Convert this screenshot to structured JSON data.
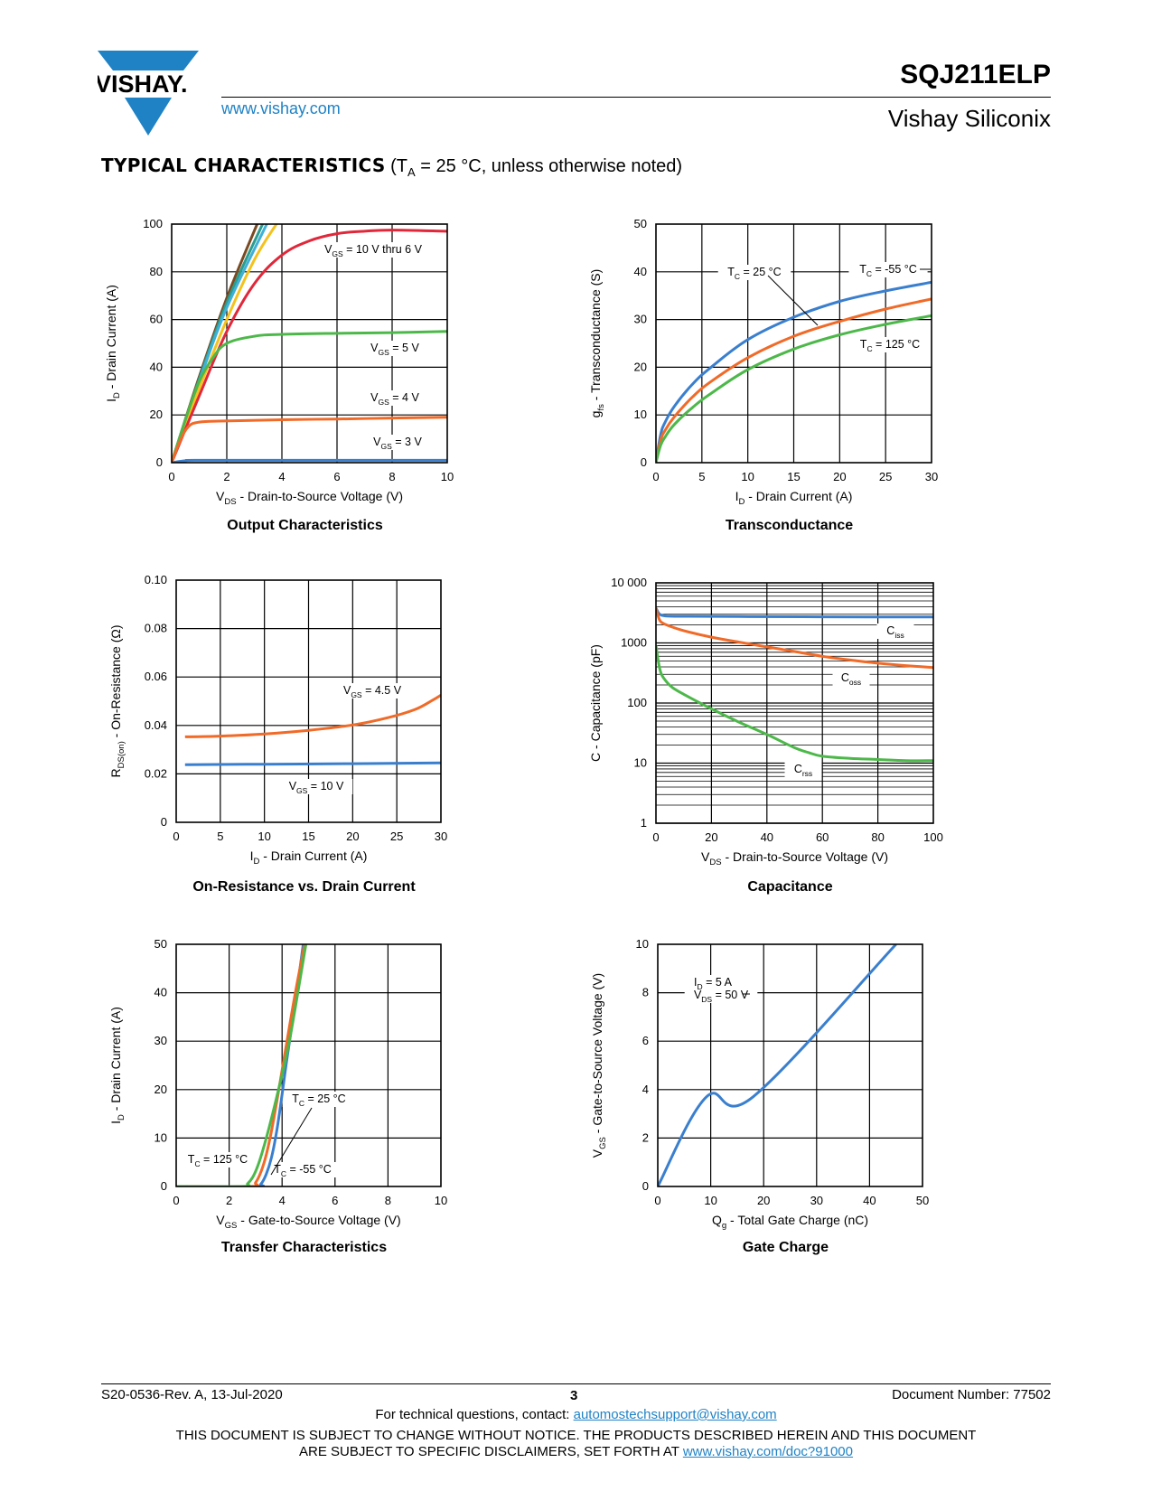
{
  "header": {
    "logo_text": "VISHAY.",
    "website": "www.vishay.com",
    "part_number": "SQJ211ELP",
    "company": "Vishay Siliconix"
  },
  "section": {
    "title_bold": "TYPICAL CHARACTERISTICS",
    "title_rest_prefix": "(T",
    "title_sub": "A",
    "title_rest_suffix": " = 25 °C, unless otherwise noted)"
  },
  "colors": {
    "blue": "#3a7fce",
    "orange": "#f06a28",
    "green": "#4db84a",
    "red": "#e0283a",
    "yellow": "#f5c21c",
    "cyan": "#3fb0d8",
    "brown": "#7a4a22",
    "teal": "#2a9d8f",
    "link": "#1f82c5"
  },
  "chart_data": [
    {
      "id": "output",
      "type": "line",
      "title": "Output Characteristics",
      "xlabel": "V_DS - Drain-to-Source Voltage (V)",
      "ylabel": "I_D - Drain Current (A)",
      "xlim": [
        0,
        10
      ],
      "ylim": [
        0,
        100
      ],
      "xticks": [
        "0",
        "2",
        "4",
        "6",
        "8",
        "10"
      ],
      "yticks": [
        "0",
        "20",
        "40",
        "60",
        "80",
        "100"
      ],
      "grid": true,
      "annotations": [
        "V_GS = 10 V thru 6 V",
        "V_GS = 5 V",
        "V_GS = 4 V",
        "V_GS = 3 V"
      ],
      "series": [
        {
          "color": "brown",
          "x": [
            0,
            1,
            2,
            3.1
          ],
          "y": [
            0,
            36,
            69,
            100
          ]
        },
        {
          "color": "teal",
          "x": [
            0,
            1,
            2,
            3.3
          ],
          "y": [
            0,
            35,
            67,
            100
          ]
        },
        {
          "color": "cyan",
          "x": [
            0,
            1,
            2,
            3.45
          ],
          "y": [
            0,
            34,
            65,
            100
          ]
        },
        {
          "color": "yellow",
          "x": [
            0,
            1,
            2,
            3,
            3.8
          ],
          "y": [
            0,
            31,
            60,
            85,
            100
          ]
        },
        {
          "color": "red",
          "x": [
            0,
            1,
            2,
            3,
            4,
            5,
            6,
            7,
            8,
            10
          ],
          "y": [
            0,
            28,
            55,
            75,
            87,
            93,
            96,
            97,
            97.5,
            97
          ]
        },
        {
          "color": "green",
          "x": [
            0,
            0.5,
            1,
            1.5,
            2,
            3,
            4,
            6,
            8,
            10
          ],
          "y": [
            0,
            18,
            34,
            44,
            50,
            53,
            53.8,
            54.2,
            54.5,
            55
          ]
        },
        {
          "color": "orange",
          "x": [
            0,
            0.3,
            0.6,
            1,
            2,
            4,
            6,
            8,
            10
          ],
          "y": [
            0,
            9,
            15,
            17,
            17.5,
            18,
            18.3,
            18.7,
            19
          ]
        },
        {
          "color": "blue",
          "x": [
            0,
            0.5,
            1,
            5,
            10
          ],
          "y": [
            0,
            0.8,
            1,
            1,
            1
          ]
        }
      ]
    },
    {
      "id": "transconductance",
      "type": "line",
      "title": "Transconductance",
      "xlabel": "I_D - Drain Current (A)",
      "ylabel": "g_fs - Transconductance (S)",
      "xlim": [
        0,
        30
      ],
      "ylim": [
        0,
        50
      ],
      "xticks": [
        "0",
        "5",
        "10",
        "15",
        "20",
        "25",
        "30"
      ],
      "yticks": [
        "0",
        "10",
        "20",
        "30",
        "40",
        "50"
      ],
      "grid": true,
      "annotations": [
        "T_C = 25 °C",
        "T_C = -55 °C",
        "T_C = 125 °C"
      ],
      "series": [
        {
          "name": "T_C = -55 °C",
          "color": "blue",
          "x": [
            0,
            0.5,
            1,
            2,
            4,
            6,
            10,
            15,
            20,
            25,
            30
          ],
          "y": [
            0,
            5.8,
            8.5,
            11.8,
            16.5,
            20,
            25.8,
            30.5,
            33.8,
            36,
            37.8
          ]
        },
        {
          "name": "T_C = 25 °C",
          "color": "orange",
          "x": [
            0,
            0.5,
            1,
            2,
            4,
            6,
            10,
            15,
            20,
            25,
            30
          ],
          "y": [
            0,
            4.6,
            6.8,
            9.6,
            13.8,
            17,
            22,
            26.5,
            29.6,
            32.2,
            34.3
          ]
        },
        {
          "name": "T_C = 125 °C",
          "color": "green",
          "x": [
            0,
            0.5,
            1,
            2,
            4,
            6,
            10,
            15,
            20,
            25,
            30
          ],
          "y": [
            0,
            3.6,
            5.4,
            8,
            11.6,
            14.5,
            19.5,
            23.8,
            26.8,
            29,
            30.8
          ]
        }
      ]
    },
    {
      "id": "onres",
      "type": "line",
      "title": "On-Resistance vs. Drain Current",
      "xlabel": "I_D - Drain Current (A)",
      "ylabel": "R_DS(on) - On-Resistance (Ω)",
      "xlim": [
        0,
        30
      ],
      "ylim": [
        0,
        0.1
      ],
      "xticks": [
        "0",
        "5",
        "10",
        "15",
        "20",
        "25",
        "30"
      ],
      "yticks": [
        "0",
        "0.02",
        "0.04",
        "0.06",
        "0.08",
        "0.10"
      ],
      "grid": true,
      "annotations": [
        "V_GS = 4.5 V",
        "V_GS = 10 V"
      ],
      "series": [
        {
          "name": "V_GS = 4.5 V",
          "color": "orange",
          "x": [
            1,
            5,
            10,
            15,
            20,
            24,
            27,
            29,
            30
          ],
          "y": [
            0.0353,
            0.0356,
            0.0365,
            0.038,
            0.0402,
            0.0432,
            0.0465,
            0.0503,
            0.0525
          ]
        },
        {
          "name": "V_GS = 10 V",
          "color": "blue",
          "x": [
            1,
            10,
            20,
            30
          ],
          "y": [
            0.0238,
            0.024,
            0.0242,
            0.0245
          ]
        }
      ]
    },
    {
      "id": "capacitance",
      "type": "line",
      "title": "Capacitance",
      "xlabel": "V_DS - Drain-to-Source Voltage (V)",
      "ylabel": "C - Capacitance (pF)",
      "xlim": [
        0,
        100
      ],
      "ylim": [
        1,
        10000
      ],
      "yscale": "log",
      "xticks": [
        "0",
        "20",
        "40",
        "60",
        "80",
        "100"
      ],
      "yticks": [
        "1",
        "10",
        "100",
        "1000",
        "10 000"
      ],
      "grid": true,
      "annotations": [
        "C_iss",
        "C_oss",
        "C_rss"
      ],
      "series": [
        {
          "name": "C_iss",
          "color": "blue",
          "x": [
            0,
            1,
            2,
            4,
            10,
            30,
            60,
            100
          ],
          "y": [
            3800,
            3100,
            2900,
            2800,
            2780,
            2750,
            2720,
            2700
          ]
        },
        {
          "name": "C_oss",
          "color": "orange",
          "x": [
            0,
            1,
            2,
            5,
            10,
            20,
            30,
            40,
            50,
            60,
            70,
            80,
            90,
            100
          ],
          "y": [
            3800,
            2600,
            2200,
            1900,
            1600,
            1250,
            1030,
            860,
            720,
            600,
            520,
            460,
            420,
            390
          ]
        },
        {
          "name": "C_rss",
          "color": "green",
          "x": [
            0,
            1,
            2,
            4,
            6,
            10,
            20,
            30,
            40,
            50,
            55,
            60,
            70,
            80,
            90,
            100
          ],
          "y": [
            900,
            450,
            300,
            220,
            180,
            140,
            80,
            48,
            30,
            18,
            15,
            13,
            12,
            11.5,
            11,
            11
          ]
        }
      ]
    },
    {
      "id": "transfer",
      "type": "line",
      "title": "Transfer Characteristics",
      "xlabel": "V_GS - Gate-to-Source Voltage (V)",
      "ylabel": "I_D - Drain Current (A)",
      "xlim": [
        0,
        10
      ],
      "ylim": [
        0,
        50
      ],
      "xticks": [
        "0",
        "2",
        "4",
        "6",
        "8",
        "10"
      ],
      "yticks": [
        "0",
        "10",
        "20",
        "30",
        "40",
        "50"
      ],
      "grid": true,
      "annotations": [
        "T_C = 25 °C",
        "T_C = 125 °C",
        "T_C = -55 °C"
      ],
      "series": [
        {
          "name": "T_C = -55 °C",
          "color": "blue",
          "x": [
            0,
            3,
            3.2,
            3.4,
            3.6,
            3.8,
            4,
            4.2,
            4.5,
            4.8
          ],
          "y": [
            0,
            0,
            0.5,
            2.5,
            6,
            11.5,
            19,
            27,
            38,
            50
          ]
        },
        {
          "name": "T_C = 25 °C",
          "color": "orange",
          "x": [
            0,
            2.8,
            3,
            3.2,
            3.4,
            3.6,
            3.8,
            4,
            4.2,
            4.5,
            4.85
          ],
          "y": [
            0,
            0,
            0.8,
            3,
            6.5,
            11.5,
            17.5,
            24,
            30.5,
            40,
            50
          ]
        },
        {
          "name": "T_C = 125 °C",
          "color": "green",
          "x": [
            0,
            2.5,
            2.7,
            2.9,
            3.1,
            3.3,
            3.5,
            3.8,
            4.2,
            4.5,
            4.9
          ],
          "y": [
            0,
            0,
            0.6,
            2,
            4.5,
            8,
            12,
            18.5,
            28,
            37,
            50
          ]
        }
      ]
    },
    {
      "id": "gatecharge",
      "type": "line",
      "title": "Gate Charge",
      "xlabel": "Q_g - Total Gate Charge (nC)",
      "ylabel": "V_GS - Gate-to-Source Voltage (V)",
      "xlim": [
        0,
        50
      ],
      "ylim": [
        0,
        10
      ],
      "xticks": [
        "0",
        "10",
        "20",
        "30",
        "40",
        "50"
      ],
      "yticks": [
        "0",
        "2",
        "4",
        "6",
        "8",
        "10"
      ],
      "grid": true,
      "annotations": [
        "I_D = 5 A",
        "V_DS = 50 V"
      ],
      "series": [
        {
          "color": "blue",
          "x": [
            0,
            9.2,
            18,
            45
          ],
          "y": [
            0,
            3.7,
            3.7,
            10
          ]
        }
      ]
    }
  ],
  "footer": {
    "doc_rev": "S20-0536-Rev. A, 13-Jul-2020",
    "page": "3",
    "doc_number": "Document Number: 77502",
    "contact_prefix": "For technical questions, contact: ",
    "contact_email": "automostechsupport@vishay.com",
    "disclaimer_line1": "THIS DOCUMENT IS SUBJECT TO CHANGE WITHOUT NOTICE. THE PRODUCTS DESCRIBED HEREIN AND THIS DOCUMENT",
    "disclaimer_line2_prefix": "ARE SUBJECT TO SPECIFIC DISCLAIMERS, SET FORTH AT ",
    "disclaimer_link": "www.vishay.com/doc?91000"
  }
}
